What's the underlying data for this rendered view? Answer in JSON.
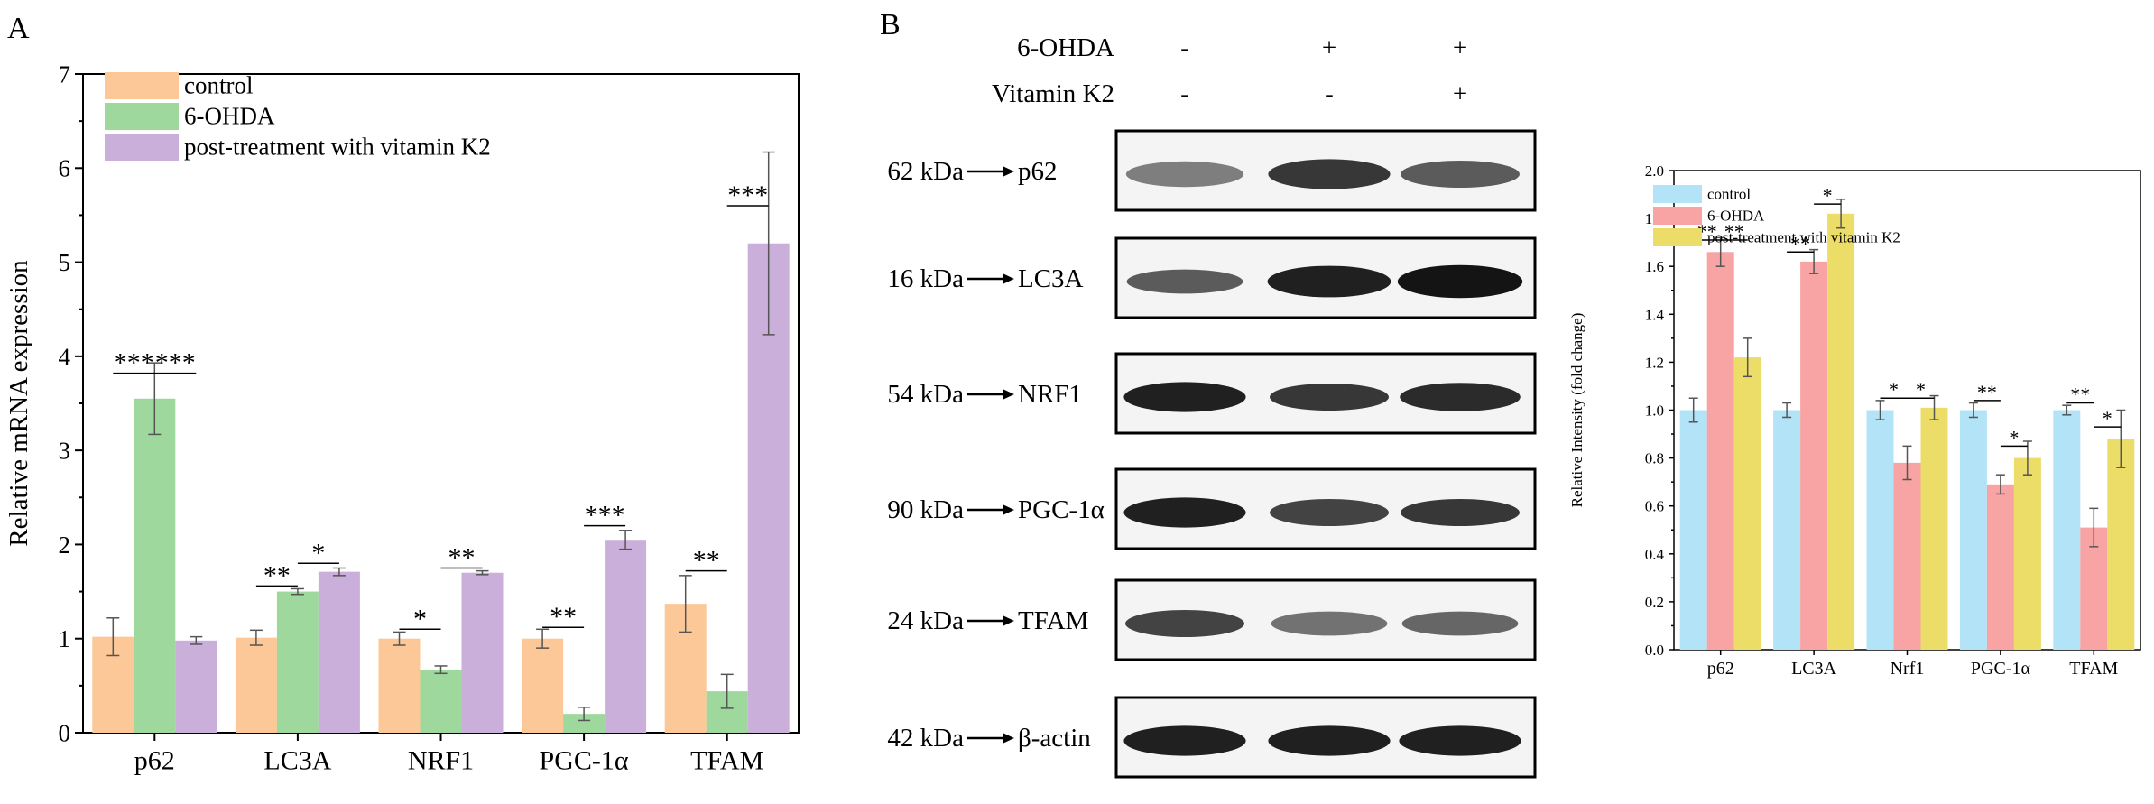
{
  "panel_labels": {
    "a": "A",
    "b": "B"
  },
  "chart_data": [
    {
      "id": "A",
      "type": "bar",
      "title": "",
      "xlabel": "",
      "ylabel": "Relative mRNA expression",
      "categories": [
        "p62",
        "LC3A",
        "NRF1",
        "PGC-1α",
        "TFAM"
      ],
      "ylim": [
        0,
        7
      ],
      "yticks": [
        "0",
        "1",
        "2",
        "3",
        "4",
        "5",
        "6",
        "7"
      ],
      "legend_position": "top-left",
      "grid": false,
      "series": [
        {
          "name": "control",
          "color": "#fcc897",
          "values": [
            1.02,
            1.01,
            1.0,
            1.0,
            1.37
          ],
          "errors": [
            0.2,
            0.08,
            0.07,
            0.1,
            0.3
          ]
        },
        {
          "name": "6-OHDA",
          "color": "#9fd89c",
          "values": [
            3.55,
            1.5,
            0.67,
            0.2,
            0.44
          ],
          "errors": [
            0.38,
            0.03,
            0.04,
            0.07,
            0.18
          ]
        },
        {
          "name": "post-treatment with vitamin K2",
          "color": "#c9afd9",
          "values": [
            0.98,
            1.71,
            1.7,
            2.05,
            5.2
          ],
          "errors": [
            0.04,
            0.04,
            0.02,
            0.1,
            0.97
          ]
        }
      ],
      "annotations": [
        {
          "category": 0,
          "from": 0,
          "to": 1,
          "y": 3.82,
          "text": "***"
        },
        {
          "category": 0,
          "from": 1,
          "to": 2,
          "y": 3.82,
          "text": "***"
        },
        {
          "category": 1,
          "from": 0,
          "to": 1,
          "y": 1.56,
          "text": "**"
        },
        {
          "category": 1,
          "from": 1,
          "to": 2,
          "y": 1.8,
          "text": "*"
        },
        {
          "category": 2,
          "from": 0,
          "to": 1,
          "y": 1.1,
          "text": "*"
        },
        {
          "category": 2,
          "from": 1,
          "to": 2,
          "y": 1.75,
          "text": "**"
        },
        {
          "category": 3,
          "from": 0,
          "to": 1,
          "y": 1.12,
          "text": "**"
        },
        {
          "category": 3,
          "from": 1,
          "to": 2,
          "y": 2.2,
          "text": "***"
        },
        {
          "category": 4,
          "from": 0,
          "to": 1,
          "y": 1.72,
          "text": "**"
        },
        {
          "category": 4,
          "from": 1,
          "to": 2,
          "y": 5.6,
          "text": "***"
        }
      ]
    },
    {
      "id": "B-quant",
      "type": "bar",
      "title": "",
      "xlabel": "",
      "ylabel": "Relative Intensity (fold change)",
      "categories": [
        "p62",
        "LC3A",
        "Nrf1",
        "PGC-1α",
        "TFAM"
      ],
      "ylim": [
        0,
        2.0
      ],
      "yticks": [
        "0.0",
        "0.2",
        "0.4",
        "0.6",
        "0.8",
        "1.0",
        "1.2",
        "1.4",
        "1.6",
        "1.8",
        "2.0"
      ],
      "legend_position": "top-left",
      "grid": false,
      "series": [
        {
          "name": "control",
          "color": "#b3e3f6",
          "values": [
            1.0,
            1.0,
            1.0,
            1.0,
            1.0
          ],
          "errors": [
            0.05,
            0.03,
            0.04,
            0.03,
            0.02
          ]
        },
        {
          "name": "6-OHDA",
          "color": "#f8a3a4",
          "values": [
            1.66,
            1.62,
            0.78,
            0.69,
            0.51
          ],
          "errors": [
            0.06,
            0.05,
            0.07,
            0.04,
            0.08
          ]
        },
        {
          "name": "post-treatment with vitamin K2",
          "color": "#ecdd69",
          "values": [
            1.22,
            1.82,
            1.01,
            0.8,
            0.88
          ],
          "errors": [
            0.08,
            0.06,
            0.05,
            0.07,
            0.12
          ]
        }
      ],
      "annotations": [
        {
          "category": 0,
          "from": 0,
          "to": 1,
          "y": 1.71,
          "text": "**"
        },
        {
          "category": 0,
          "from": 1,
          "to": 2,
          "y": 1.71,
          "text": "**"
        },
        {
          "category": 1,
          "from": 0,
          "to": 1,
          "y": 1.66,
          "text": "**"
        },
        {
          "category": 1,
          "from": 1,
          "to": 2,
          "y": 1.86,
          "text": "*"
        },
        {
          "category": 2,
          "from": 0,
          "to": 1,
          "y": 1.05,
          "text": "*"
        },
        {
          "category": 2,
          "from": 1,
          "to": 2,
          "y": 1.05,
          "text": "*"
        },
        {
          "category": 3,
          "from": 0,
          "to": 1,
          "y": 1.04,
          "text": "**"
        },
        {
          "category": 3,
          "from": 1,
          "to": 2,
          "y": 0.85,
          "text": "*"
        },
        {
          "category": 4,
          "from": 0,
          "to": 1,
          "y": 1.03,
          "text": "**"
        },
        {
          "category": 4,
          "from": 1,
          "to": 2,
          "y": 0.93,
          "text": "*"
        }
      ]
    }
  ],
  "western_blot": {
    "header": {
      "rows": [
        {
          "label": "6-OHDA",
          "lanes": [
            "-",
            "+",
            "+"
          ]
        },
        {
          "label": "Vitamin K2",
          "lanes": [
            "-",
            "-",
            "+"
          ]
        }
      ]
    },
    "blots": [
      {
        "kda": "62 kDa",
        "protein": "p62",
        "intensities": [
          0.55,
          0.85,
          0.7
        ],
        "thickness": [
          0.9,
          1.2,
          1.0
        ]
      },
      {
        "kda": "16 kDa",
        "protein": "LC3A",
        "intensities": [
          0.7,
          0.95,
          1.0
        ],
        "thickness": [
          0.8,
          1.3,
          1.4
        ]
      },
      {
        "kda": "54 kDa",
        "protein": "NRF1",
        "intensities": [
          0.95,
          0.85,
          0.9
        ],
        "thickness": [
          1.2,
          1.0,
          1.1
        ]
      },
      {
        "kda": "90 kDa",
        "protein": "PGC-1α",
        "intensities": [
          0.95,
          0.8,
          0.85
        ],
        "thickness": [
          1.2,
          1.0,
          1.0
        ]
      },
      {
        "kda": "24 kDa",
        "protein": "TFAM",
        "intensities": [
          0.8,
          0.6,
          0.65
        ],
        "thickness": [
          1.0,
          0.8,
          0.8
        ]
      },
      {
        "kda": "42 kDa",
        "protein": "β-actin",
        "intensities": [
          0.95,
          0.95,
          0.95
        ],
        "thickness": [
          1.2,
          1.2,
          1.2
        ]
      }
    ]
  }
}
